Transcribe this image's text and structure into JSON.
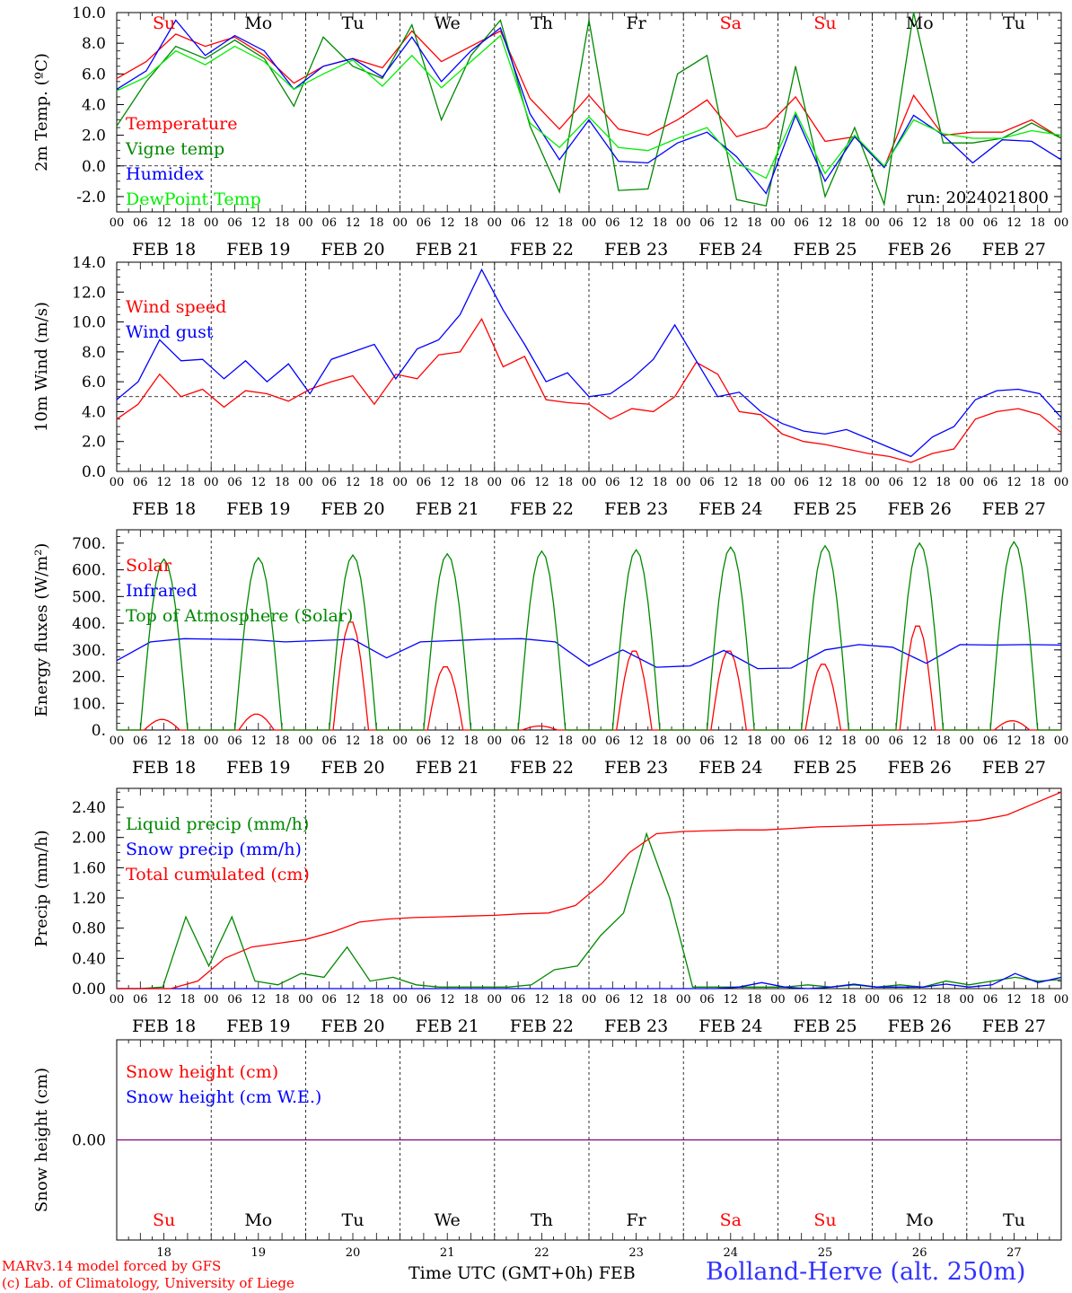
{
  "chart_data": [
    {
      "id": "temp",
      "type": "line",
      "ylabel": "2m Temp. (ºC)",
      "ylim": [
        -3,
        10
      ],
      "yticks": [
        -2.0,
        0.0,
        2.0,
        4.0,
        6.0,
        8.0,
        10.0
      ],
      "ytick_decimals": 1,
      "hline": 0,
      "annotation": "run: 2024021800",
      "day_names": [
        "Su",
        "Mo",
        "Tu",
        "We",
        "Th",
        "Fr",
        "Sa",
        "Su",
        "Mo",
        "Tu"
      ],
      "day_name_colors": [
        "#ff0000",
        "#000000",
        "#000000",
        "#000000",
        "#000000",
        "#000000",
        "#ff0000",
        "#ff0000",
        "#000000",
        "#000000"
      ],
      "x_hours": [
        0,
        6,
        12,
        18,
        24,
        30,
        36,
        42,
        48,
        54,
        60,
        66,
        72,
        78,
        84,
        90,
        96,
        102,
        108,
        114,
        120,
        126,
        132,
        138,
        144,
        150,
        156,
        162,
        168,
        174,
        180,
        186,
        192,
        198,
        204,
        210,
        216,
        222,
        228,
        234,
        240
      ],
      "series": [
        {
          "name": "Temperature",
          "color": "#ff0000",
          "values": [
            5.7,
            6.8,
            8.6,
            7.8,
            8.4,
            7.2,
            5.4,
            6.5,
            7.0,
            6.4,
            8.8,
            6.8,
            7.8,
            8.8,
            4.4,
            2.4,
            4.6,
            2.4,
            2.0,
            3.0,
            4.3,
            1.9,
            2.5,
            4.5,
            1.6,
            1.9,
            -0.1,
            4.6,
            2.0,
            2.2,
            2.2,
            3.0,
            1.8
          ]
        },
        {
          "name": "Vigne temp",
          "color": "#008800",
          "values": [
            2.6,
            5.5,
            7.8,
            7.0,
            8.2,
            7.0,
            3.9,
            8.4,
            6.5,
            5.7,
            9.2,
            3.0,
            7.2,
            9.5,
            2.6,
            -1.7,
            9.5,
            -1.6,
            -1.5,
            6.0,
            7.2,
            -2.2,
            -2.6,
            6.5,
            -2.0,
            2.5,
            -2.5,
            10.5,
            1.5,
            1.5,
            1.8,
            2.8,
            1.8
          ]
        },
        {
          "name": "Humidex",
          "color": "#0000ff",
          "values": [
            5.0,
            6.2,
            9.5,
            7.2,
            8.5,
            7.5,
            5.0,
            6.5,
            7.0,
            5.8,
            8.4,
            5.5,
            7.5,
            9.0,
            3.4,
            0.4,
            3.0,
            0.3,
            0.2,
            1.5,
            2.2,
            0.6,
            -1.8,
            3.3,
            -1.0,
            1.9,
            -0.1,
            3.3,
            2.0,
            0.2,
            1.7,
            1.6,
            0.4
          ]
        },
        {
          "name": "DewPoint Temp",
          "color": "#00ee00",
          "values": [
            4.9,
            5.8,
            7.5,
            6.6,
            7.8,
            6.8,
            5.0,
            6.0,
            6.9,
            5.2,
            7.2,
            5.1,
            6.8,
            8.5,
            2.8,
            1.2,
            3.2,
            1.2,
            1.0,
            1.8,
            2.5,
            0.2,
            -0.8,
            3.5,
            -0.5,
            2.0,
            0.0,
            3.0,
            2.1,
            1.8,
            1.8,
            2.3,
            2.0
          ]
        }
      ]
    },
    {
      "id": "wind",
      "type": "line",
      "ylabel": "10m Wind (m/s)",
      "ylim": [
        0,
        14
      ],
      "yticks": [
        0.0,
        2.0,
        4.0,
        6.0,
        8.0,
        10.0,
        12.0,
        14.0
      ],
      "ytick_decimals": 1,
      "hline": 5,
      "series": [
        {
          "name": "Wind speed",
          "color": "#ff0000",
          "values": [
            3.5,
            4.5,
            6.5,
            5.0,
            5.5,
            4.3,
            5.4,
            5.2,
            4.7,
            5.5,
            6.0,
            6.4,
            4.5,
            6.5,
            6.2,
            7.8,
            8.0,
            10.2,
            7.0,
            7.7,
            4.8,
            4.6,
            4.5,
            3.5,
            4.2,
            4.0,
            5.0,
            7.3,
            6.5,
            4.0,
            3.8,
            2.5,
            2.0,
            1.8,
            1.5,
            1.2,
            1.0,
            0.6,
            1.2,
            1.5,
            3.5,
            4.0,
            4.2,
            3.8,
            2.6
          ]
        },
        {
          "name": "Wind gust",
          "color": "#0000ff",
          "values": [
            4.8,
            6.0,
            8.8,
            7.4,
            7.5,
            6.2,
            7.4,
            6.0,
            7.2,
            5.2,
            7.5,
            8.0,
            8.5,
            6.2,
            8.2,
            8.8,
            10.5,
            13.5,
            10.8,
            8.5,
            6.0,
            6.6,
            5.0,
            5.2,
            6.2,
            7.5,
            9.8,
            7.4,
            5.0,
            5.3,
            4.0,
            3.2,
            2.7,
            2.5,
            2.8,
            2.2,
            1.6,
            1.0,
            2.3,
            3.0,
            4.8,
            5.4,
            5.5,
            5.2,
            3.6
          ]
        }
      ]
    },
    {
      "id": "energy",
      "type": "line",
      "ylabel": "Energy fluxes (W/m²)",
      "ylim": [
        0,
        750
      ],
      "yticks": [
        0,
        100,
        200,
        300,
        400,
        500,
        600,
        700
      ],
      "ytick_decimals": 0,
      "series": [
        {
          "name": "Solar",
          "color": "#ff0000",
          "peaks": [
            40,
            60,
            410,
            240,
            15,
            300,
            300,
            250,
            395,
            35
          ]
        },
        {
          "name": "Infrared",
          "color": "#0000ff",
          "values": [
            260,
            330,
            342,
            340,
            338,
            330,
            335,
            340,
            270,
            330,
            335,
            340,
            342,
            330,
            240,
            300,
            235,
            240,
            298,
            230,
            232,
            300,
            320,
            310,
            250,
            320,
            318,
            320,
            318
          ]
        },
        {
          "name": "Top of Atmosphere (Solar)",
          "color": "#008800",
          "peaks": [
            640,
            645,
            655,
            660,
            670,
            675,
            685,
            690,
            700,
            705
          ]
        }
      ]
    },
    {
      "id": "precip",
      "type": "line",
      "ylabel": "Precip (mm/h)",
      "ylim": [
        0,
        2.65
      ],
      "yticks": [
        0.0,
        0.4,
        0.8,
        1.2,
        1.6,
        2.0,
        2.4
      ],
      "ytick_decimals": 2,
      "series": [
        {
          "name": "Liquid precip (mm/h)",
          "color": "#008800",
          "values": [
            0,
            0,
            0.02,
            0.95,
            0.3,
            0.95,
            0.1,
            0.05,
            0.2,
            0.15,
            0.55,
            0.1,
            0.15,
            0.05,
            0.02,
            0.02,
            0.02,
            0.02,
            0.05,
            0.25,
            0.3,
            0.7,
            1.0,
            2.05,
            1.2,
            0.02,
            0.02,
            0.02,
            0.02,
            0.02,
            0.05,
            0.02,
            0.05,
            0.02,
            0.05,
            0.02,
            0.1,
            0.05,
            0.1,
            0.15,
            0.1,
            0.12
          ]
        },
        {
          "name": "Snow precip (mm/h)",
          "color": "#0000ff",
          "values": [
            0,
            0,
            0,
            0,
            0,
            0,
            0,
            0,
            0,
            0,
            0,
            0,
            0,
            0,
            0,
            0,
            0,
            0,
            0,
            0,
            0,
            0,
            0,
            0,
            0,
            0,
            0,
            0.02,
            0.08,
            0.02,
            0,
            0.02,
            0.06,
            0.02,
            0.02,
            0.02,
            0.06,
            0.02,
            0.05,
            0.2,
            0.08,
            0.15
          ]
        },
        {
          "name": "Total cumulated (cm)",
          "color": "#ff0000",
          "values": [
            0,
            0,
            0,
            0.1,
            0.4,
            0.55,
            0.6,
            0.65,
            0.75,
            0.88,
            0.92,
            0.94,
            0.95,
            0.96,
            0.97,
            0.99,
            1.0,
            1.1,
            1.4,
            1.8,
            2.05,
            2.08,
            2.09,
            2.1,
            2.1,
            2.12,
            2.14,
            2.15,
            2.16,
            2.17,
            2.18,
            2.2,
            2.23,
            2.3,
            2.45,
            2.6
          ]
        }
      ]
    },
    {
      "id": "snow",
      "type": "line",
      "ylabel": "Snow height (cm)",
      "ylim": [
        -1,
        1
      ],
      "yticks": [
        0.0
      ],
      "ytick_decimals": 2,
      "series": [
        {
          "name": "Snow height (cm)",
          "color": "#ff0000",
          "values": [
            0,
            0
          ]
        },
        {
          "name": "Snow height (cm W.E.)",
          "color": "#0000ff",
          "values": [
            0,
            0
          ]
        }
      ],
      "bottom_day_names": [
        "Su",
        "Mo",
        "Tu",
        "We",
        "Th",
        "Fr",
        "Sa",
        "Su",
        "Mo",
        "Tu"
      ],
      "bottom_day_colors": [
        "#ff0000",
        "#000000",
        "#000000",
        "#000000",
        "#000000",
        "#000000",
        "#ff0000",
        "#ff0000",
        "#000000",
        "#000000"
      ],
      "bottom_day_numbers": [
        "18",
        "19",
        "20",
        "21",
        "22",
        "23",
        "24",
        "25",
        "26",
        "27"
      ]
    }
  ],
  "x_axis": {
    "hour_labels": [
      "00",
      "06",
      "12",
      "18"
    ],
    "end_label": "00",
    "date_labels": [
      "FEB 18",
      "FEB 19",
      "FEB 20",
      "FEB 21",
      "FEB 22",
      "FEB 23",
      "FEB 24",
      "FEB 25",
      "FEB 26",
      "FEB 27"
    ],
    "days": 10
  },
  "footer": {
    "model_line": "MARv3.14 model forced by GFS",
    "credit_line": "(c) Lab. of Climatology, University of Liege",
    "time_label": "Time UTC (GMT+0h)",
    "month_label": "FEB",
    "station": "Bolland-Herve (alt. 250m)"
  },
  "colors": {
    "model_line": "#ff0000",
    "credit_line": "#ff0000",
    "station": "#3333ff"
  }
}
